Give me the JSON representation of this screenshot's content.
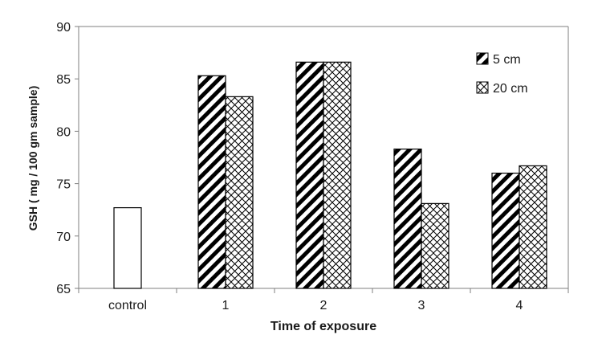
{
  "chart_data": {
    "type": "bar",
    "xlabel": "Time of exposure",
    "ylabel": "GSH ( mg / 100 gm sample)",
    "ylim": [
      65,
      90
    ],
    "yticks": [
      "65",
      "70",
      "75",
      "80",
      "85",
      "90"
    ],
    "categories": [
      "control",
      "1",
      "2",
      "3",
      "4"
    ],
    "control_value": 72.7,
    "series": [
      {
        "name": "5 cm",
        "pattern": "diagonal-hatch",
        "values": [
          null,
          85.3,
          86.6,
          78.3,
          76.0
        ]
      },
      {
        "name": "20 cm",
        "pattern": "crosshatch",
        "values": [
          null,
          83.3,
          86.6,
          73.1,
          76.7
        ]
      }
    ],
    "grid": false,
    "legend_position": "top-right",
    "colors": {
      "stroke": "#000000",
      "fill": "#ffffff"
    }
  }
}
